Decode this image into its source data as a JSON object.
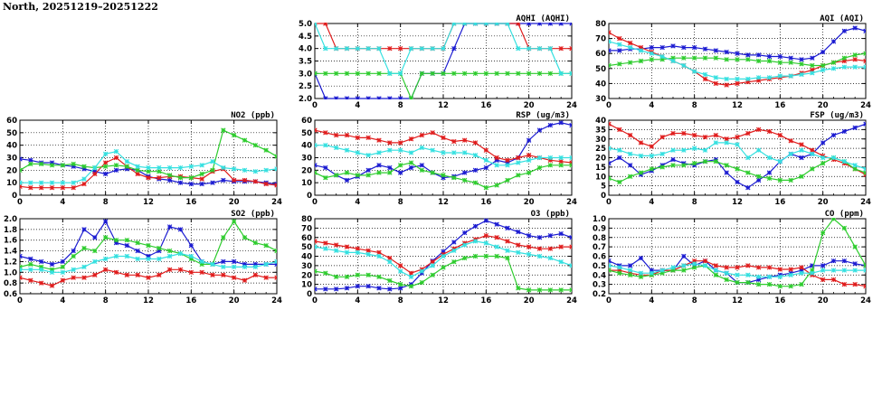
{
  "title": "North, 20251219–20251222",
  "colors": {
    "blue": "#1b1bd1",
    "red": "#e01c1c",
    "green": "#2ecc2e",
    "cyan": "#34e0e0"
  },
  "chart_data": [
    {
      "id": "aqhi",
      "type": "line",
      "title": "AQHI (AQHI)",
      "xlim": [
        0,
        24
      ],
      "xticks": [
        0,
        4,
        8,
        12,
        16,
        20,
        24
      ],
      "ylim": [
        2.0,
        5.0
      ],
      "yticks": [
        "2.0",
        "2.5",
        "3.0",
        "3.5",
        "4.0",
        "4.5",
        "5.0"
      ],
      "grid": true,
      "series": [
        {
          "color": "blue",
          "values": [
            3,
            2,
            2,
            2,
            2,
            2,
            2,
            2,
            2,
            2,
            3,
            3,
            3,
            4,
            5,
            5,
            5,
            5,
            5,
            5,
            5,
            5,
            5,
            5,
            5
          ]
        },
        {
          "color": "red",
          "values": [
            5,
            5,
            4,
            4,
            4,
            4,
            4,
            4,
            4,
            4,
            4,
            4,
            4,
            5,
            5,
            5,
            5,
            5,
            5,
            5,
            4,
            4,
            4,
            4,
            4
          ]
        },
        {
          "color": "green",
          "values": [
            3,
            3,
            3,
            3,
            3,
            3,
            3,
            3,
            3,
            2,
            3,
            3,
            3,
            3,
            3,
            3,
            3,
            3,
            3,
            3,
            3,
            3,
            3,
            3,
            3
          ]
        },
        {
          "color": "cyan",
          "values": [
            5,
            4,
            4,
            4,
            4,
            4,
            4,
            3,
            3,
            4,
            4,
            4,
            4,
            5,
            5,
            5,
            5,
            5,
            5,
            4,
            4,
            4,
            4,
            3,
            3
          ]
        }
      ]
    },
    {
      "id": "aqi",
      "type": "line",
      "title": "AQI (AQI)",
      "xlim": [
        0,
        24
      ],
      "xticks": [
        0,
        4,
        8,
        12,
        16,
        20,
        24
      ],
      "ylim": [
        30,
        80
      ],
      "yticks": [
        "30",
        "40",
        "50",
        "60",
        "70",
        "80"
      ],
      "grid": true,
      "series": [
        {
          "color": "blue",
          "values": [
            62,
            62,
            63,
            63,
            64,
            64,
            65,
            64,
            64,
            63,
            62,
            61,
            60,
            59,
            59,
            58,
            58,
            57,
            56,
            57,
            61,
            68,
            75,
            77,
            75
          ]
        },
        {
          "color": "red",
          "values": [
            74,
            70,
            67,
            64,
            61,
            58,
            55,
            52,
            48,
            43,
            40,
            39,
            40,
            41,
            42,
            43,
            44,
            45,
            47,
            49,
            52,
            54,
            55,
            56,
            55
          ]
        },
        {
          "color": "green",
          "values": [
            52,
            53,
            54,
            55,
            56,
            56,
            57,
            57,
            57,
            57,
            57,
            56,
            56,
            56,
            55,
            55,
            54,
            54,
            53,
            52,
            52,
            54,
            57,
            59,
            60
          ]
        },
        {
          "color": "cyan",
          "values": [
            68,
            66,
            64,
            62,
            60,
            58,
            55,
            52,
            48,
            46,
            44,
            43,
            43,
            43,
            44,
            44,
            45,
            45,
            46,
            47,
            49,
            50,
            51,
            51,
            51
          ]
        }
      ]
    },
    {
      "id": "no2",
      "type": "line",
      "title": "NO2 (ppb)",
      "xlim": [
        0,
        24
      ],
      "xticks": [
        0,
        4,
        8,
        12,
        16,
        20,
        24
      ],
      "ylim": [
        0,
        60
      ],
      "yticks": [
        "0",
        "10",
        "20",
        "30",
        "40",
        "50",
        "60"
      ],
      "grid": true,
      "series": [
        {
          "color": "blue",
          "values": [
            29,
            28,
            26,
            26,
            24,
            23,
            21,
            19,
            17,
            20,
            21,
            20,
            15,
            13,
            12,
            10,
            9,
            9,
            10,
            12,
            11,
            11,
            11,
            10,
            9
          ]
        },
        {
          "color": "red",
          "values": [
            7,
            6,
            6,
            6,
            6,
            6,
            9,
            17,
            26,
            30,
            23,
            17,
            14,
            14,
            15,
            15,
            14,
            13,
            19,
            21,
            12,
            12,
            11,
            9,
            8
          ]
        },
        {
          "color": "green",
          "values": [
            20,
            25,
            25,
            24,
            24,
            25,
            23,
            22,
            23,
            24,
            23,
            20,
            19,
            19,
            16,
            14,
            14,
            17,
            20,
            52,
            48,
            44,
            40,
            36,
            31
          ]
        },
        {
          "color": "cyan",
          "values": [
            10,
            10,
            10,
            10,
            10,
            10,
            13,
            22,
            33,
            35,
            27,
            23,
            22,
            22,
            22,
            22,
            23,
            24,
            27,
            22,
            21,
            20,
            19,
            20,
            21
          ]
        }
      ]
    },
    {
      "id": "rsp",
      "type": "line",
      "title": "RSP (ug/m3)",
      "xlim": [
        0,
        24
      ],
      "xticks": [
        0,
        4,
        8,
        12,
        16,
        20,
        24
      ],
      "ylim": [
        0,
        60
      ],
      "yticks": [
        "0",
        "10",
        "20",
        "30",
        "40",
        "50",
        "60"
      ],
      "grid": true,
      "series": [
        {
          "color": "blue",
          "values": [
            24,
            22,
            16,
            12,
            15,
            20,
            24,
            22,
            18,
            22,
            24,
            18,
            14,
            15,
            18,
            20,
            22,
            28,
            26,
            30,
            44,
            52,
            56,
            58,
            56
          ]
        },
        {
          "color": "red",
          "values": [
            52,
            50,
            48,
            48,
            46,
            46,
            44,
            42,
            42,
            45,
            48,
            50,
            46,
            43,
            44,
            42,
            36,
            30,
            28,
            30,
            32,
            30,
            28,
            27,
            26
          ]
        },
        {
          "color": "green",
          "values": [
            18,
            14,
            16,
            18,
            16,
            16,
            18,
            18,
            24,
            26,
            20,
            18,
            16,
            14,
            12,
            10,
            6,
            8,
            12,
            16,
            18,
            22,
            24,
            24,
            24
          ]
        },
        {
          "color": "cyan",
          "values": [
            40,
            40,
            38,
            36,
            34,
            32,
            34,
            36,
            36,
            34,
            38,
            36,
            34,
            34,
            34,
            32,
            28,
            24,
            24,
            26,
            28,
            30,
            30,
            30,
            30
          ]
        }
      ]
    },
    {
      "id": "fsp",
      "type": "line",
      "title": "FSP (ug/m3)",
      "xlim": [
        0,
        24
      ],
      "xticks": [
        0,
        4,
        8,
        12,
        16,
        20,
        24
      ],
      "ylim": [
        0,
        40
      ],
      "yticks": [
        "0",
        "5",
        "10",
        "15",
        "20",
        "25",
        "30",
        "35",
        "40"
      ],
      "grid": true,
      "series": [
        {
          "color": "blue",
          "values": [
            17,
            20,
            16,
            11,
            13,
            16,
            19,
            17,
            16,
            18,
            19,
            12,
            7,
            4,
            8,
            12,
            18,
            22,
            20,
            22,
            28,
            32,
            34,
            36,
            38
          ]
        },
        {
          "color": "red",
          "values": [
            38,
            35,
            32,
            28,
            26,
            31,
            33,
            33,
            32,
            31,
            32,
            30,
            31,
            33,
            35,
            34,
            32,
            29,
            27,
            24,
            21,
            19,
            17,
            14,
            11
          ]
        },
        {
          "color": "green",
          "values": [
            9,
            7,
            10,
            12,
            14,
            15,
            16,
            16,
            17,
            18,
            18,
            16,
            14,
            12,
            10,
            9,
            8,
            8,
            10,
            14,
            17,
            20,
            18,
            14,
            12
          ]
        },
        {
          "color": "cyan",
          "values": [
            25,
            24,
            22,
            21,
            21,
            22,
            24,
            24,
            25,
            24,
            28,
            28,
            27,
            20,
            24,
            20,
            18,
            22,
            24,
            22,
            20,
            20,
            18,
            16,
            14
          ]
        }
      ]
    },
    {
      "id": "so2",
      "type": "line",
      "title": "SO2 (ppb)",
      "xlim": [
        0,
        24
      ],
      "xticks": [
        0,
        4,
        8,
        12,
        16,
        20,
        24
      ],
      "ylim": [
        0.6,
        2.0
      ],
      "yticks": [
        "0.6",
        "0.8",
        "1.0",
        "1.2",
        "1.4",
        "1.6",
        "1.8",
        "2.0"
      ],
      "grid": true,
      "series": [
        {
          "color": "blue",
          "values": [
            1.3,
            1.25,
            1.2,
            1.15,
            1.2,
            1.4,
            1.8,
            1.65,
            1.95,
            1.55,
            1.5,
            1.4,
            1.3,
            1.4,
            1.85,
            1.8,
            1.5,
            1.2,
            1.15,
            1.2,
            1.2,
            1.15,
            1.15,
            1.15,
            1.15
          ]
        },
        {
          "color": "red",
          "values": [
            0.9,
            0.85,
            0.8,
            0.75,
            0.85,
            0.9,
            0.9,
            0.95,
            1.05,
            1.0,
            0.95,
            0.95,
            0.9,
            0.95,
            1.05,
            1.05,
            1.0,
            1.0,
            0.95,
            0.95,
            0.9,
            0.85,
            0.95,
            0.9,
            0.9
          ]
        },
        {
          "color": "green",
          "values": [
            1.1,
            1.15,
            1.1,
            1.05,
            1.1,
            1.3,
            1.45,
            1.4,
            1.65,
            1.6,
            1.6,
            1.55,
            1.5,
            1.45,
            1.4,
            1.35,
            1.25,
            1.15,
            1.15,
            1.65,
            1.95,
            1.65,
            1.55,
            1.5,
            1.4
          ]
        },
        {
          "color": "cyan",
          "values": [
            1.05,
            1.05,
            1.05,
            1.0,
            1.0,
            1.05,
            1.1,
            1.2,
            1.25,
            1.3,
            1.3,
            1.25,
            1.25,
            1.25,
            1.3,
            1.35,
            1.3,
            1.2,
            1.15,
            1.1,
            1.1,
            1.1,
            1.1,
            1.15,
            1.2
          ]
        }
      ]
    },
    {
      "id": "o3",
      "type": "line",
      "title": "O3 (ppb)",
      "xlim": [
        0,
        24
      ],
      "xticks": [
        0,
        4,
        8,
        12,
        16,
        20,
        24
      ],
      "ylim": [
        0,
        80
      ],
      "yticks": [
        "0",
        "10",
        "20",
        "30",
        "40",
        "50",
        "60",
        "70",
        "80"
      ],
      "grid": true,
      "series": [
        {
          "color": "blue",
          "values": [
            5,
            5,
            5,
            6,
            8,
            8,
            6,
            5,
            6,
            10,
            22,
            35,
            45,
            55,
            65,
            72,
            78,
            74,
            70,
            66,
            62,
            60,
            62,
            64,
            60
          ]
        },
        {
          "color": "red",
          "values": [
            56,
            54,
            52,
            50,
            48,
            46,
            44,
            38,
            30,
            22,
            26,
            34,
            42,
            48,
            54,
            58,
            62,
            60,
            56,
            52,
            50,
            48,
            48,
            50,
            50
          ]
        },
        {
          "color": "green",
          "values": [
            24,
            22,
            18,
            18,
            20,
            20,
            18,
            14,
            10,
            8,
            12,
            20,
            28,
            34,
            38,
            40,
            40,
            40,
            38,
            6,
            4,
            4,
            4,
            4,
            4
          ]
        },
        {
          "color": "cyan",
          "values": [
            50,
            48,
            46,
            44,
            44,
            42,
            40,
            34,
            24,
            18,
            24,
            30,
            40,
            46,
            52,
            56,
            54,
            50,
            46,
            44,
            42,
            40,
            38,
            34,
            30
          ]
        }
      ]
    },
    {
      "id": "co",
      "type": "line",
      "title": "CO (ppm)",
      "xlim": [
        0,
        24
      ],
      "xticks": [
        0,
        4,
        8,
        12,
        16,
        20,
        24
      ],
      "ylim": [
        0.2,
        1.0
      ],
      "yticks": [
        "0.2",
        "0.3",
        "0.4",
        "0.5",
        "0.6",
        "0.7",
        "0.8",
        "0.9",
        "1.0"
      ],
      "grid": true,
      "series": [
        {
          "color": "blue",
          "values": [
            0.55,
            0.5,
            0.5,
            0.58,
            0.45,
            0.45,
            0.45,
            0.6,
            0.5,
            0.55,
            0.45,
            0.42,
            0.32,
            0.32,
            0.35,
            0.38,
            0.4,
            0.42,
            0.45,
            0.5,
            0.5,
            0.55,
            0.55,
            0.52,
            0.5
          ]
        },
        {
          "color": "red",
          "values": [
            0.45,
            0.45,
            0.42,
            0.4,
            0.4,
            0.45,
            0.45,
            0.5,
            0.55,
            0.55,
            0.5,
            0.48,
            0.48,
            0.5,
            0.48,
            0.48,
            0.46,
            0.46,
            0.48,
            0.4,
            0.35,
            0.35,
            0.3,
            0.3,
            0.28
          ]
        },
        {
          "color": "green",
          "values": [
            0.45,
            0.42,
            0.4,
            0.38,
            0.4,
            0.42,
            0.45,
            0.45,
            0.48,
            0.5,
            0.4,
            0.35,
            0.32,
            0.32,
            0.3,
            0.3,
            0.28,
            0.28,
            0.3,
            0.45,
            0.85,
            1.0,
            0.9,
            0.7,
            0.5
          ]
        },
        {
          "color": "cyan",
          "values": [
            0.5,
            0.48,
            0.45,
            0.42,
            0.42,
            0.45,
            0.48,
            0.5,
            0.52,
            0.5,
            0.45,
            0.42,
            0.4,
            0.4,
            0.38,
            0.38,
            0.38,
            0.4,
            0.42,
            0.42,
            0.45,
            0.45,
            0.45,
            0.45,
            0.45
          ]
        }
      ]
    }
  ]
}
